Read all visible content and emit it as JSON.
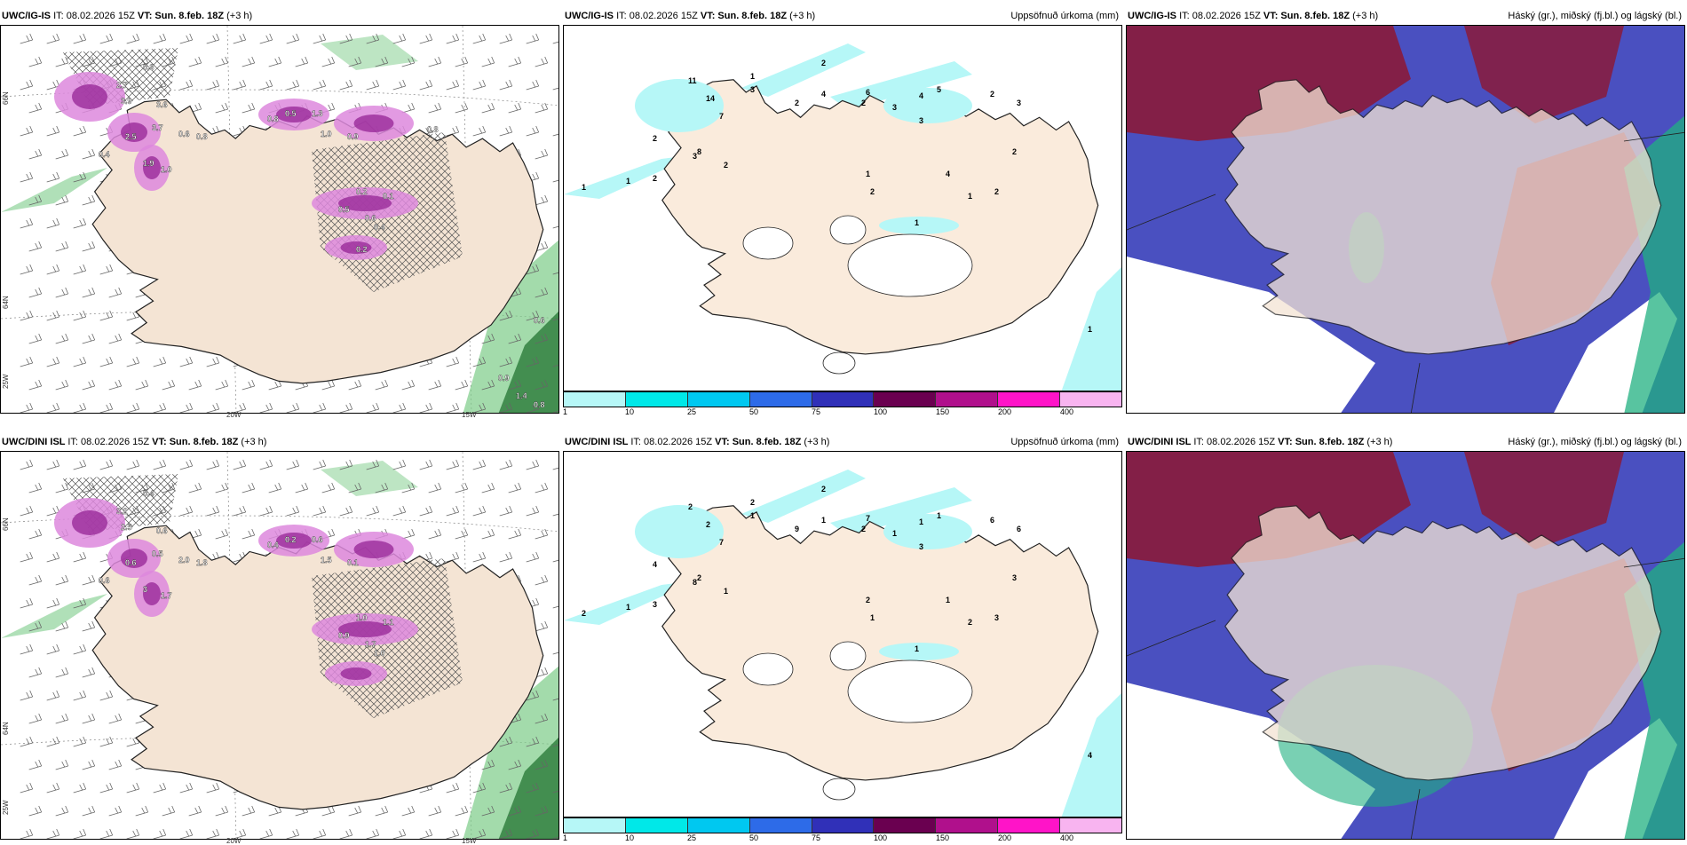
{
  "panels": [
    {
      "model": "UWC/IG-IS",
      "it_label": "IT:",
      "it_value": "08.02.2026 15Z",
      "vt_label": "VT:",
      "vt_value": "Sun. 8.feb. 18Z",
      "lead": "(+3 h)",
      "right_title": "",
      "type": "precip-wind",
      "axis": {
        "lat66": "66N",
        "lat64": "64N",
        "lon20": "20W",
        "lon15": "15W",
        "lon25": "25W"
      },
      "values": [
        "0.3",
        "2.7",
        "3.9",
        "3.6",
        "3.7",
        "2.5",
        "0.6",
        "0.8",
        "0.4",
        "1.9",
        "1.0",
        "0.8",
        "0.5",
        "1.3",
        "1.0",
        "0.9",
        "0.2",
        "0.1",
        "0.5",
        "0.6",
        "0.4",
        "0.2",
        "0.8",
        "0.6",
        "0.9",
        "1.4",
        "0.8"
      ]
    },
    {
      "model": "UWC/IG-IS",
      "it_label": "IT:",
      "it_value": "08.02.2026 15Z",
      "vt_label": "VT:",
      "vt_value": "Sun. 8.feb. 18Z",
      "lead": "(+3 h)",
      "right_title": "Uppsöfnuð úrkoma (mm)",
      "type": "accum",
      "numbers": [
        "1",
        "2",
        "3",
        "2",
        "4",
        "6",
        "2",
        "3",
        "4",
        "3",
        "5",
        "2",
        "11",
        "14",
        "7",
        "8",
        "2",
        "3",
        "2",
        "1",
        "2",
        "1",
        "1",
        "1",
        "2",
        "4",
        "1",
        "2",
        "2",
        "1",
        "3"
      ]
    },
    {
      "model": "UWC/IG-IS",
      "it_label": "IT:",
      "it_value": "08.02.2026 15Z",
      "vt_label": "VT:",
      "vt_value": "Sun. 8.feb. 18Z",
      "lead": "(+3 h)",
      "right_title": "Háský (gr.), miðský (fj.bl.) og lágský (bl.)",
      "type": "cloud"
    },
    {
      "model": "UWC/DINI ISL",
      "it_label": "IT:",
      "it_value": "08.02.2026 15Z",
      "vt_label": "VT:",
      "vt_value": "Sun. 8.feb. 18Z",
      "lead": "(+3 h)",
      "right_title": "",
      "type": "precip-wind",
      "axis": {
        "lat66": "66N",
        "lat64": "64N",
        "lon20": "20W",
        "lon15": "15W",
        "lon25": "25W"
      },
      "values": [
        "0.4",
        "3.2",
        "2.5",
        "0.6",
        "0.5",
        "0.6",
        "2.0",
        "1.8",
        "0.6",
        "3",
        "1.7",
        "0.4",
        "0.2",
        "0.6",
        "1.5",
        "0.1",
        "1.0",
        "1.1",
        "0.9",
        "1.7",
        "1.0"
      ]
    },
    {
      "model": "UWC/DINI ISL",
      "it_label": "IT:",
      "it_value": "08.02.2026 15Z",
      "vt_label": "VT:",
      "vt_value": "Sun. 8.feb. 18Z",
      "lead": "(+3 h)",
      "right_title": "Uppsöfnuð úrkoma (mm)",
      "type": "accum",
      "numbers": [
        "2",
        "2",
        "1",
        "9",
        "1",
        "7",
        "2",
        "1",
        "1",
        "3",
        "1",
        "6",
        "2",
        "2",
        "7",
        "2",
        "4",
        "8",
        "1",
        "2",
        "3",
        "1",
        "1",
        "2",
        "1",
        "1",
        "2",
        "3",
        "3",
        "4",
        "6"
      ]
    },
    {
      "model": "UWC/DINI ISL",
      "it_label": "IT:",
      "it_value": "08.02.2026 15Z",
      "vt_label": "VT:",
      "vt_value": "Sun. 8.feb. 18Z",
      "lead": "(+3 h)",
      "right_title": "Háský (gr.), miðský (fj.bl.) og lágský (bl.)",
      "type": "cloud"
    }
  ],
  "colorbar": {
    "ticks": [
      "1",
      "10",
      "25",
      "50",
      "75",
      "100",
      "150",
      "200",
      "400"
    ],
    "colors": [
      "#b6f7f7",
      "#00e8e8",
      "#00c8f0",
      "#2d6be8",
      "#3030b8",
      "#6a0050",
      "#b0108c",
      "#ff14c8",
      "#f8b4f0"
    ]
  },
  "colors": {
    "land": "#f4e4d4",
    "precip_light": "#dd88dd",
    "precip_heavy": "#9a2a9a",
    "green": "#7ccc88",
    "high_cloud": "#8a1a3a",
    "mid_cloud": "#4a50c0",
    "low_cloud": "#20b080"
  }
}
